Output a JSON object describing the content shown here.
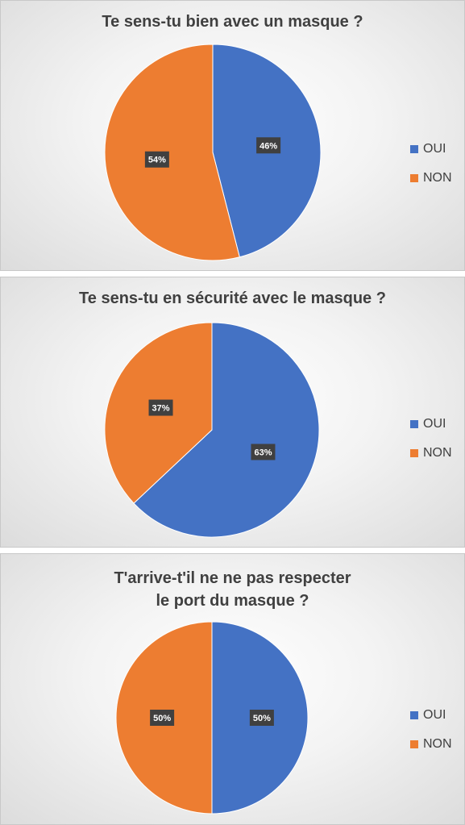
{
  "colors": {
    "oui": "#4472C4",
    "non": "#ED7D31",
    "label_bg": "#404040",
    "label_fg": "#ffffff"
  },
  "chart_data": [
    {
      "type": "pie",
      "title": "Te sens-tu bien avec un masque ?",
      "categories": [
        "OUI",
        "NON"
      ],
      "values": [
        46,
        54
      ],
      "labels": [
        "46%",
        "54%"
      ],
      "legend_position": "right"
    },
    {
      "type": "pie",
      "title": "Te sens-tu en sécurité avec le masque ?",
      "categories": [
        "OUI",
        "NON"
      ],
      "values": [
        63,
        37
      ],
      "labels": [
        "63%",
        "37%"
      ],
      "legend_position": "right"
    },
    {
      "type": "pie",
      "title": "T'arrive-t'il ne ne pas respecter\nle port du masque ?",
      "categories": [
        "OUI",
        "NON"
      ],
      "values": [
        50,
        50
      ],
      "labels": [
        "50%",
        "50%"
      ],
      "legend_position": "right"
    }
  ]
}
